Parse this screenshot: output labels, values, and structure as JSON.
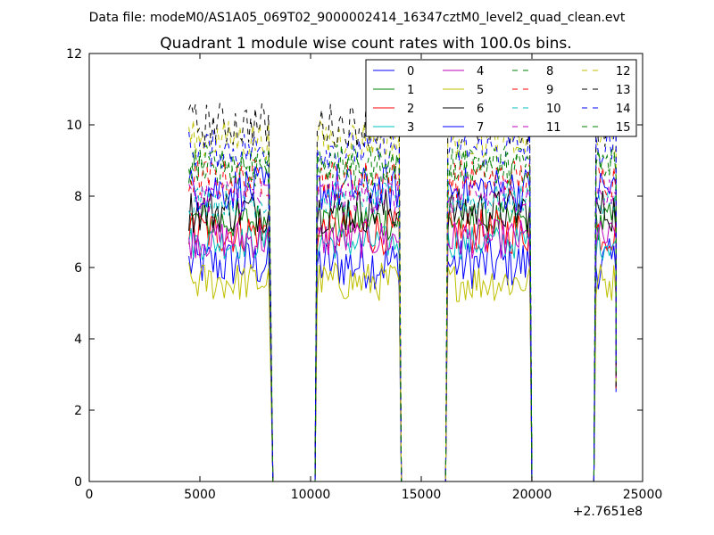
{
  "figure": {
    "suptitle": "Data file: modeM0/AS1A05_069T02_9000002414_16347cztM0_level2_quad_clean.evt"
  },
  "chart_data": {
    "type": "line",
    "title": "Quadrant 1 module wise count rates with 100.0s bins.",
    "xlabel": "",
    "ylabel": "",
    "xlim": [
      0,
      25000
    ],
    "ylim": [
      0,
      12
    ],
    "x_offset_label": "+2.7651e8",
    "x_ticks": [
      0,
      5000,
      10000,
      15000,
      20000,
      25000
    ],
    "y_ticks": [
      0,
      2,
      4,
      6,
      8,
      10,
      12
    ],
    "grid": false,
    "legend_position": "top-right",
    "legend_columns": 4,
    "bin_seconds": 100,
    "segments": [
      {
        "start": 4500,
        "end": 8100,
        "drop_to": 8300
      },
      {
        "start": 10300,
        "end": 14000,
        "drop_to": 14100
      },
      {
        "start": 16200,
        "end": 19900,
        "drop_to": 20000
      },
      {
        "start": 22900,
        "end": 23800,
        "drop_to": 23800
      }
    ],
    "series": [
      {
        "name": "0",
        "color": "#0000ff",
        "dash": "solid",
        "mean": 6.1,
        "noise": 0.45
      },
      {
        "name": "1",
        "color": "#008000",
        "dash": "solid",
        "mean": 7.3,
        "noise": 0.35
      },
      {
        "name": "2",
        "color": "#ff0000",
        "dash": "solid",
        "mean": 7.0,
        "noise": 0.4
      },
      {
        "name": "3",
        "color": "#00bfbf",
        "dash": "solid",
        "mean": 6.7,
        "noise": 0.3
      },
      {
        "name": "4",
        "color": "#bf00bf",
        "dash": "solid",
        "mean": 6.8,
        "noise": 0.35
      },
      {
        "name": "5",
        "color": "#bfbf00",
        "dash": "solid",
        "mean": 5.6,
        "noise": 0.35
      },
      {
        "name": "6",
        "color": "#000000",
        "dash": "solid",
        "mean": 7.6,
        "noise": 0.4
      },
      {
        "name": "7",
        "color": "#0000ff",
        "dash": "solid",
        "mean": 8.2,
        "noise": 0.4
      },
      {
        "name": "8",
        "color": "#008000",
        "dash": "dashed",
        "mean": 8.8,
        "noise": 0.35
      },
      {
        "name": "9",
        "color": "#ff0000",
        "dash": "dashed",
        "mean": 8.5,
        "noise": 0.35
      },
      {
        "name": "10",
        "color": "#00bfbf",
        "dash": "dashed",
        "mean": 7.9,
        "noise": 0.3
      },
      {
        "name": "11",
        "color": "#bf00bf",
        "dash": "dashed",
        "mean": 8.0,
        "noise": 0.35
      },
      {
        "name": "12",
        "color": "#bfbf00",
        "dash": "dashed",
        "mean": 9.6,
        "noise": 0.35
      },
      {
        "name": "13",
        "color": "#000000",
        "dash": "dashed",
        "mean": 10.0,
        "noise": 0.4
      },
      {
        "name": "14",
        "color": "#0000ff",
        "dash": "dashed",
        "mean": 9.3,
        "noise": 0.35
      },
      {
        "name": "15",
        "color": "#008000",
        "dash": "dashed",
        "mean": 8.9,
        "noise": 0.35
      }
    ]
  }
}
